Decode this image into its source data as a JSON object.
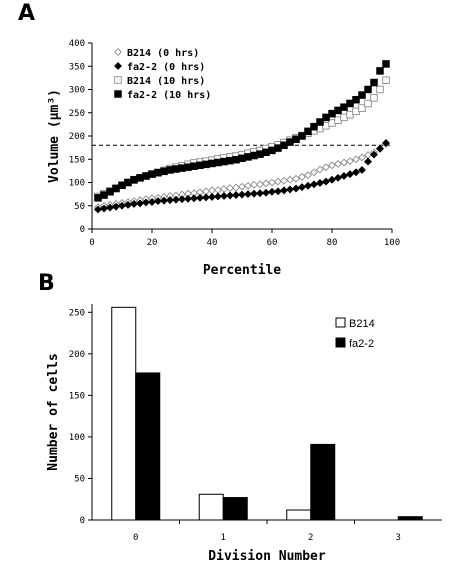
{
  "panels": {
    "a_letter": "A",
    "b_letter": "B"
  },
  "chart_data": [
    {
      "type": "scatter",
      "panel": "A",
      "xlabel": "Percentile",
      "ylabel": "Volume (µm³)",
      "xlim": [
        0,
        100
      ],
      "ylim": [
        0,
        400
      ],
      "xticks": [
        "0",
        "20",
        "40",
        "60",
        "80",
        "100"
      ],
      "yticks": [
        "0",
        "50",
        "100",
        "150",
        "200",
        "250",
        "300",
        "350",
        "400"
      ],
      "reference_line": {
        "y": 180,
        "style": "dashed"
      },
      "legend_position": "top-left",
      "series": [
        {
          "name": "B214 (0 hrs)",
          "marker": "open-diamond",
          "color": "#8a8a8a",
          "x": [
            2,
            4,
            6,
            8,
            10,
            12,
            14,
            16,
            18,
            20,
            22,
            24,
            26,
            28,
            30,
            32,
            34,
            36,
            38,
            40,
            42,
            44,
            46,
            48,
            50,
            52,
            54,
            56,
            58,
            60,
            62,
            64,
            66,
            68,
            70,
            72,
            74,
            76,
            78,
            80,
            82,
            84,
            86,
            88,
            90,
            92,
            94,
            96,
            98
          ],
          "y": [
            47,
            50,
            52,
            54,
            56,
            58,
            60,
            62,
            64,
            66,
            67,
            69,
            71,
            72,
            74,
            76,
            77,
            79,
            81,
            83,
            84,
            86,
            88,
            89,
            91,
            93,
            95,
            96,
            98,
            100,
            102,
            104,
            106,
            108,
            112,
            116,
            122,
            128,
            133,
            137,
            140,
            143,
            146,
            150,
            154,
            159,
            165,
            172,
            183
          ]
        },
        {
          "name": "fa2-2 (0 hrs)",
          "marker": "filled-diamond",
          "color": "#000000",
          "x": [
            2,
            4,
            6,
            8,
            10,
            12,
            14,
            16,
            18,
            20,
            22,
            24,
            26,
            28,
            30,
            32,
            34,
            36,
            38,
            40,
            42,
            44,
            46,
            48,
            50,
            52,
            54,
            56,
            58,
            60,
            62,
            64,
            66,
            68,
            70,
            72,
            74,
            76,
            78,
            80,
            82,
            84,
            86,
            88,
            90,
            92,
            94,
            96,
            98
          ],
          "y": [
            42,
            44,
            46,
            48,
            50,
            52,
            54,
            55,
            57,
            58,
            60,
            61,
            62,
            63,
            64,
            65,
            66,
            67,
            68,
            69,
            70,
            71,
            72,
            73,
            74,
            75,
            76,
            77,
            78,
            80,
            81,
            83,
            85,
            87,
            90,
            93,
            96,
            99,
            102,
            106,
            110,
            114,
            118,
            122,
            127,
            145,
            160,
            173,
            185
          ]
        },
        {
          "name": "B214 (10 hrs)",
          "marker": "open-square",
          "color": "#8a8a8a",
          "x": [
            2,
            4,
            6,
            8,
            10,
            12,
            14,
            16,
            18,
            20,
            22,
            24,
            26,
            28,
            30,
            32,
            34,
            36,
            38,
            40,
            42,
            44,
            46,
            48,
            50,
            52,
            54,
            56,
            58,
            60,
            62,
            64,
            66,
            68,
            70,
            72,
            74,
            76,
            78,
            80,
            82,
            84,
            86,
            88,
            90,
            92,
            94,
            96,
            98
          ],
          "y": [
            70,
            76,
            82,
            88,
            94,
            100,
            105,
            110,
            114,
            118,
            122,
            126,
            130,
            133,
            136,
            139,
            142,
            144,
            146,
            148,
            151,
            153,
            155,
            157,
            160,
            163,
            166,
            169,
            173,
            177,
            181,
            186,
            191,
            196,
            201,
            206,
            211,
            216,
            222,
            228,
            234,
            240,
            246,
            253,
            260,
            270,
            282,
            300,
            320
          ]
        },
        {
          "name": "fa2-2 (10 hrs)",
          "marker": "filled-square",
          "color": "#000000",
          "x": [
            2,
            4,
            6,
            8,
            10,
            12,
            14,
            16,
            18,
            20,
            22,
            24,
            26,
            28,
            30,
            32,
            34,
            36,
            38,
            40,
            42,
            44,
            46,
            48,
            50,
            52,
            54,
            56,
            58,
            60,
            62,
            64,
            66,
            68,
            70,
            72,
            74,
            76,
            78,
            80,
            82,
            84,
            86,
            88,
            90,
            92,
            94,
            96,
            98
          ],
          "y": [
            67,
            73,
            80,
            87,
            94,
            100,
            106,
            110,
            114,
            118,
            121,
            124,
            127,
            129,
            131,
            133,
            135,
            137,
            139,
            141,
            143,
            145,
            147,
            149,
            152,
            155,
            158,
            161,
            165,
            169,
            174,
            180,
            187,
            193,
            200,
            210,
            220,
            230,
            240,
            248,
            255,
            262,
            270,
            278,
            288,
            300,
            315,
            340,
            355
          ]
        }
      ]
    },
    {
      "type": "bar",
      "panel": "B",
      "xlabel": "Division Number",
      "ylabel": "Number of cells",
      "ylim": [
        0,
        260
      ],
      "yticks": [
        "0",
        "50",
        "100",
        "150",
        "200",
        "250"
      ],
      "categories": [
        "0",
        "1",
        "2",
        "3"
      ],
      "legend_position": "top-right",
      "series": [
        {
          "name": "B214",
          "fill": "#ffffff",
          "values": [
            256,
            31,
            12,
            0
          ]
        },
        {
          "name": "fa2-2",
          "fill": "#000000",
          "values": [
            177,
            27,
            91,
            4
          ]
        }
      ]
    }
  ]
}
